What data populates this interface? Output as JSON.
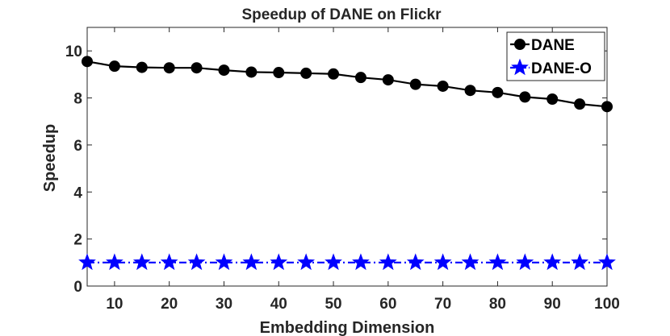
{
  "chart_data": {
    "type": "line",
    "title": "Speedup of DANE on Flickr",
    "xlabel": "Embedding Dimension",
    "ylabel": "Speedup",
    "xlim": [
      5,
      100
    ],
    "ylim": [
      0,
      11
    ],
    "xticks": [
      10,
      20,
      30,
      40,
      50,
      60,
      70,
      80,
      90,
      100
    ],
    "yticks": [
      0,
      2,
      4,
      6,
      8,
      10
    ],
    "grid": false,
    "legend_position": "top-right",
    "x": [
      5,
      10,
      15,
      20,
      25,
      30,
      35,
      40,
      45,
      50,
      55,
      60,
      65,
      70,
      75,
      80,
      85,
      90,
      95,
      100
    ],
    "series": [
      {
        "name": "DANE",
        "color": "#000000",
        "marker": "circle",
        "line_style": "solid",
        "values": [
          9.55,
          9.35,
          9.3,
          9.28,
          9.28,
          9.18,
          9.1,
          9.08,
          9.05,
          9.02,
          8.87,
          8.77,
          8.58,
          8.5,
          8.32,
          8.23,
          8.04,
          7.95,
          7.74,
          7.63
        ]
      },
      {
        "name": "DANE-O",
        "color": "#0000ff",
        "marker": "star",
        "line_style": "dash-dot",
        "values": [
          1,
          1,
          1,
          1,
          1,
          1,
          1,
          1,
          1,
          1,
          1,
          1,
          1,
          1,
          1,
          1,
          1,
          1,
          1,
          1
        ]
      }
    ]
  }
}
